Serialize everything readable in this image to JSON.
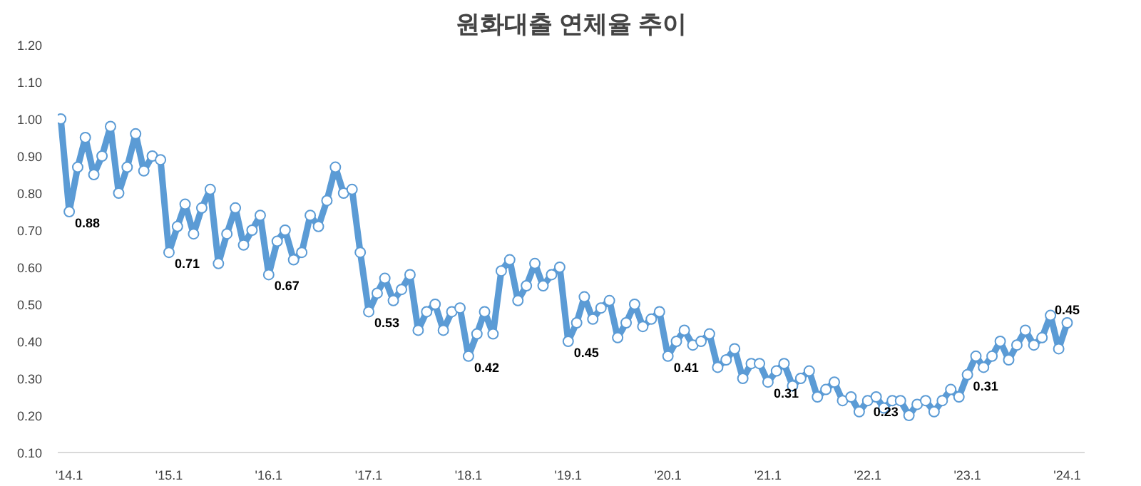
{
  "chart_data": {
    "type": "line",
    "title": "원화대출 연체율 추이",
    "x": [
      "2013-12",
      "2014-01",
      "2014-02",
      "2014-03",
      "2014-04",
      "2014-05",
      "2014-06",
      "2014-07",
      "2014-08",
      "2014-09",
      "2014-10",
      "2014-11",
      "2014-12",
      "2015-01",
      "2015-02",
      "2015-03",
      "2015-04",
      "2015-05",
      "2015-06",
      "2015-07",
      "2015-08",
      "2015-09",
      "2015-10",
      "2015-11",
      "2015-12",
      "2016-01",
      "2016-02",
      "2016-03",
      "2016-04",
      "2016-05",
      "2016-06",
      "2016-07",
      "2016-08",
      "2016-09",
      "2016-10",
      "2016-11",
      "2016-12",
      "2017-01",
      "2017-02",
      "2017-03",
      "2017-04",
      "2017-05",
      "2017-06",
      "2017-07",
      "2017-08",
      "2017-09",
      "2017-10",
      "2017-11",
      "2017-12",
      "2018-01",
      "2018-02",
      "2018-03",
      "2018-04",
      "2018-05",
      "2018-06",
      "2018-07",
      "2018-08",
      "2018-09",
      "2018-10",
      "2018-11",
      "2018-12",
      "2019-01",
      "2019-02",
      "2019-03",
      "2019-04",
      "2019-05",
      "2019-06",
      "2019-07",
      "2019-08",
      "2019-09",
      "2019-10",
      "2019-11",
      "2019-12",
      "2020-01",
      "2020-02",
      "2020-03",
      "2020-04",
      "2020-05",
      "2020-06",
      "2020-07",
      "2020-08",
      "2020-09",
      "2020-10",
      "2020-11",
      "2020-12",
      "2021-01",
      "2021-02",
      "2021-03",
      "2021-04",
      "2021-05",
      "2021-06",
      "2021-07",
      "2021-08",
      "2021-09",
      "2021-10",
      "2021-11",
      "2021-12",
      "2022-01",
      "2022-02",
      "2022-03",
      "2022-04",
      "2022-05",
      "2022-06",
      "2022-07",
      "2022-08",
      "2022-09",
      "2022-10",
      "2022-11",
      "2022-12",
      "2023-01",
      "2023-02",
      "2023-03",
      "2023-04",
      "2023-05",
      "2023-06",
      "2023-07",
      "2023-08",
      "2023-09",
      "2023-10",
      "2023-11",
      "2023-12",
      "2024-01"
    ],
    "series": [
      {
        "color": "#5b9bd5",
        "values": [
          1.0,
          0.75,
          0.87,
          0.95,
          0.85,
          0.9,
          0.98,
          0.8,
          0.87,
          0.96,
          0.86,
          0.9,
          0.89,
          0.64,
          0.71,
          0.77,
          0.69,
          0.76,
          0.81,
          0.61,
          0.69,
          0.76,
          0.66,
          0.7,
          0.74,
          0.58,
          0.67,
          0.7,
          0.62,
          0.64,
          0.74,
          0.71,
          0.78,
          0.87,
          0.8,
          0.81,
          0.64,
          0.48,
          0.53,
          0.57,
          0.51,
          0.54,
          0.58,
          0.43,
          0.48,
          0.5,
          0.43,
          0.48,
          0.49,
          0.36,
          0.42,
          0.48,
          0.42,
          0.59,
          0.62,
          0.51,
          0.55,
          0.61,
          0.55,
          0.58,
          0.6,
          0.4,
          0.45,
          0.52,
          0.46,
          0.49,
          0.51,
          0.41,
          0.45,
          0.5,
          0.44,
          0.46,
          0.48,
          0.36,
          0.4,
          0.43,
          0.39,
          0.4,
          0.42,
          0.33,
          0.35,
          0.38,
          0.3,
          0.34,
          0.34,
          0.29,
          0.32,
          0.34,
          0.28,
          0.3,
          0.32,
          0.25,
          0.27,
          0.29,
          0.24,
          0.25,
          0.21,
          0.24,
          0.25,
          0.22,
          0.24,
          0.24,
          0.2,
          0.23,
          0.24,
          0.21,
          0.24,
          0.27,
          0.25,
          0.31,
          0.36,
          0.33,
          0.36,
          0.4,
          0.35,
          0.39,
          0.43,
          0.39,
          0.41,
          0.47,
          0.38,
          0.45
        ]
      }
    ],
    "xlim": [
      "2013-11-20",
      "2024-03-05"
    ],
    "xticks": [
      {
        "value": "2014-01",
        "label": "'14.1"
      },
      {
        "value": "2015-01",
        "label": "'15.1"
      },
      {
        "value": "2016-01",
        "label": "'16.1"
      },
      {
        "value": "2017-01",
        "label": "'17.1"
      },
      {
        "value": "2018-01",
        "label": "'18.1"
      },
      {
        "value": "2019-01",
        "label": "'19.1"
      },
      {
        "value": "2020-01",
        "label": "'20.1"
      },
      {
        "value": "2021-01",
        "label": "'21.1"
      },
      {
        "value": "2022-01",
        "label": "'22.1"
      },
      {
        "value": "2023-01",
        "label": "'23.1"
      },
      {
        "value": "2024-01",
        "label": "'24.1"
      }
    ],
    "ylim": [
      0.1,
      1.2
    ],
    "yticks": [
      {
        "value": 0.1,
        "label": "0.10"
      },
      {
        "value": 0.2,
        "label": "0.20"
      },
      {
        "value": 0.3,
        "label": "0.30"
      },
      {
        "value": 0.4,
        "label": "0.40"
      },
      {
        "value": 0.5,
        "label": "0.50"
      },
      {
        "value": 0.6,
        "label": "0.60"
      },
      {
        "value": 0.7,
        "label": "0.70"
      },
      {
        "value": 0.8,
        "label": "0.80"
      },
      {
        "value": 0.9,
        "label": "0.90"
      },
      {
        "value": 1.0,
        "label": "1.00"
      },
      {
        "value": 1.1,
        "label": "1.10"
      },
      {
        "value": 1.2,
        "label": "1.20"
      }
    ],
    "marker": "circle",
    "line_style": "solid",
    "grid": false,
    "annotations": [
      {
        "text": "0.88",
        "x": "2014-01",
        "y": 0.75
      },
      {
        "text": "0.71",
        "x": "2015-01",
        "y": 0.64
      },
      {
        "text": "0.67",
        "x": "2016-01",
        "y": 0.58
      },
      {
        "text": "0.53",
        "x": "2017-01",
        "y": 0.48
      },
      {
        "text": "0.42",
        "x": "2018-01",
        "y": 0.36
      },
      {
        "text": "0.45",
        "x": "2019-01",
        "y": 0.4
      },
      {
        "text": "0.41",
        "x": "2020-01",
        "y": 0.36
      },
      {
        "text": "0.31",
        "x": "2021-01",
        "y": 0.29
      },
      {
        "text": "0.23",
        "x": "2022-01",
        "y": 0.24
      },
      {
        "text": "0.31",
        "x": "2023-01",
        "y": 0.31
      },
      {
        "text": "0.45",
        "x": "2024-01",
        "y": 0.45
      }
    ]
  }
}
